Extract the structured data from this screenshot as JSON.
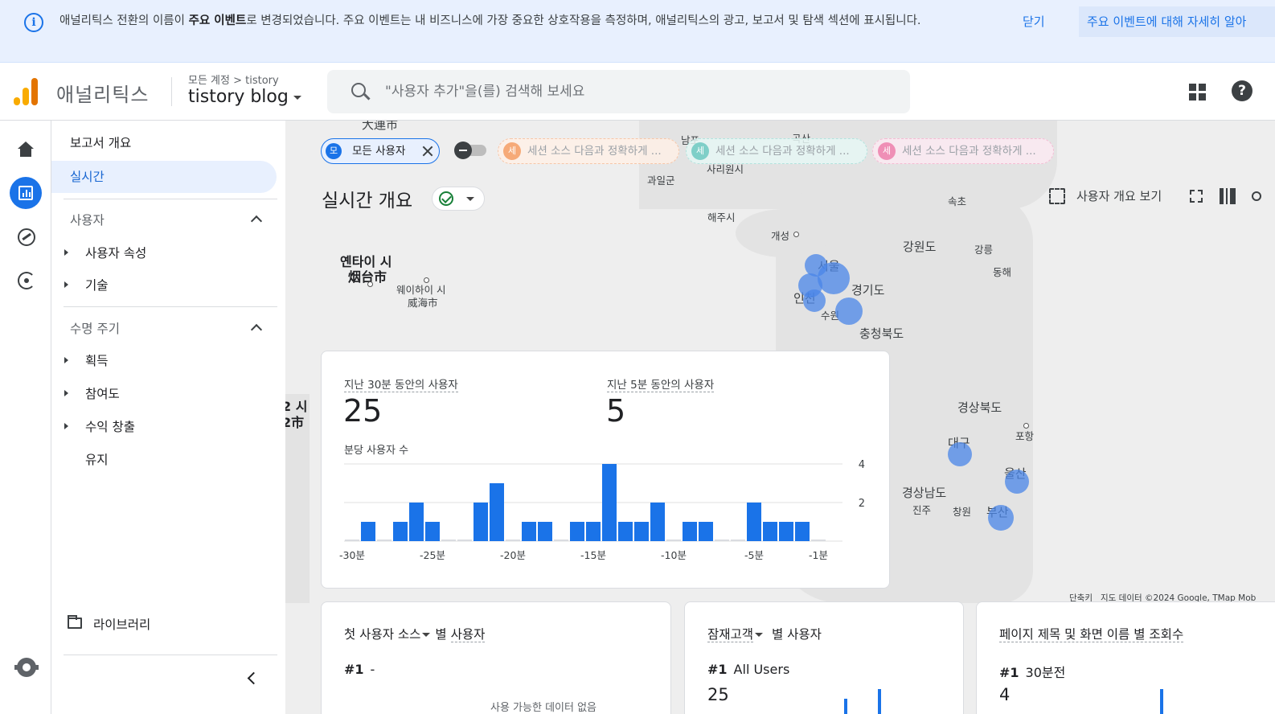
{
  "banner": {
    "message_pre": "애널리틱스 전환의 이름이 ",
    "message_bold": "주요 이벤트",
    "message_post": "로 변경되었습니다. 주요 이벤트는 내 비즈니스에 가장 중요한 상호작용을 측정하며, 애널리틱스의 광고, 보고서 및 탐색 섹션에 표시됩니다.",
    "close_label": "닫기",
    "learn_more_label": "주요 이벤트에 대해 자세히 알아"
  },
  "header": {
    "product": "애널리틱스",
    "account_path": "모든 계정 > tistory",
    "property": "tistory blog",
    "search_placeholder": "\"사용자 추가\"을(를) 검색해 보세요"
  },
  "nav": {
    "overview": "보고서 개요",
    "realtime": "실시간",
    "section_user": "사용자",
    "user_attributes": "사용자 속성",
    "tech": "기술",
    "section_lifecycle": "수명 주기",
    "acquisition": "획득",
    "engagement": "참여도",
    "monetization": "수익 창출",
    "retention": "유지",
    "library": "라이브러리"
  },
  "filters": {
    "all_users": {
      "badge": "모",
      "label": "모든 사용자"
    },
    "compare": [
      {
        "badge": "세",
        "label": "세션 소스 다음과 정확하게 ...",
        "color": "#f6aa78"
      },
      {
        "badge": "세",
        "label": "세션 소스 다음과 정확하게 ...",
        "color": "#7fcfc8"
      },
      {
        "badge": "세",
        "label": "세션 소스 다음과 정확하게 ...",
        "color": "#ef8fb6"
      }
    ]
  },
  "page": {
    "title": "실시간 개요",
    "view_overview": "사용자 개요 보기"
  },
  "map": {
    "attribution_key": "단축키",
    "attribution": "지도 데이터 ©2024 Google, TMap Mob"
  },
  "realtime_card": {
    "label_30": "지난 30분 동안의 사용자",
    "value_30": "25",
    "label_5": "지난 5분 동안의 사용자",
    "value_5": "5",
    "chart_title": "분당 사용자 수"
  },
  "chart_data": {
    "type": "bar",
    "title": "분당 사용자 수",
    "categories": [
      "-30분",
      "-29분",
      "-28분",
      "-27분",
      "-26분",
      "-25분",
      "-24분",
      "-23분",
      "-22분",
      "-21분",
      "-20분",
      "-19분",
      "-18분",
      "-17분",
      "-16분",
      "-15분",
      "-14분",
      "-13분",
      "-12분",
      "-11분",
      "-10분",
      "-9분",
      "-8분",
      "-7분",
      "-6분",
      "-5분",
      "-4분",
      "-3분",
      "-2분",
      "-1분"
    ],
    "values": [
      0,
      1,
      0,
      1,
      2,
      1,
      0,
      0,
      2,
      3,
      0,
      1,
      1,
      0,
      1,
      1,
      4,
      1,
      1,
      2,
      0,
      1,
      1,
      0,
      0,
      2,
      1,
      1,
      1,
      0
    ],
    "tick_labels": [
      "-30분",
      "-25분",
      "-20분",
      "-15분",
      "-10분",
      "-5분",
      "-1분"
    ],
    "tick_values": [
      "2",
      "4"
    ],
    "ylim": [
      0,
      4
    ],
    "color": "#1a73e8"
  },
  "cards": {
    "source": {
      "title_a": "첫 사용자 소스",
      "title_b": "별 ",
      "title_c": "사용자",
      "rank": "#1",
      "rank_label": "-",
      "nodata": "사용 가능한 데이터 없음"
    },
    "audience": {
      "title_a": "잠재고객",
      "title_b": " 별 사용자",
      "rank": "#1",
      "rank_label": "All Users",
      "value": "25"
    },
    "pages": {
      "title": "페이지 제목 및 화면 이름 별 조회수",
      "rank": "#1",
      "rank_label": "30분전",
      "value": "4"
    }
  }
}
